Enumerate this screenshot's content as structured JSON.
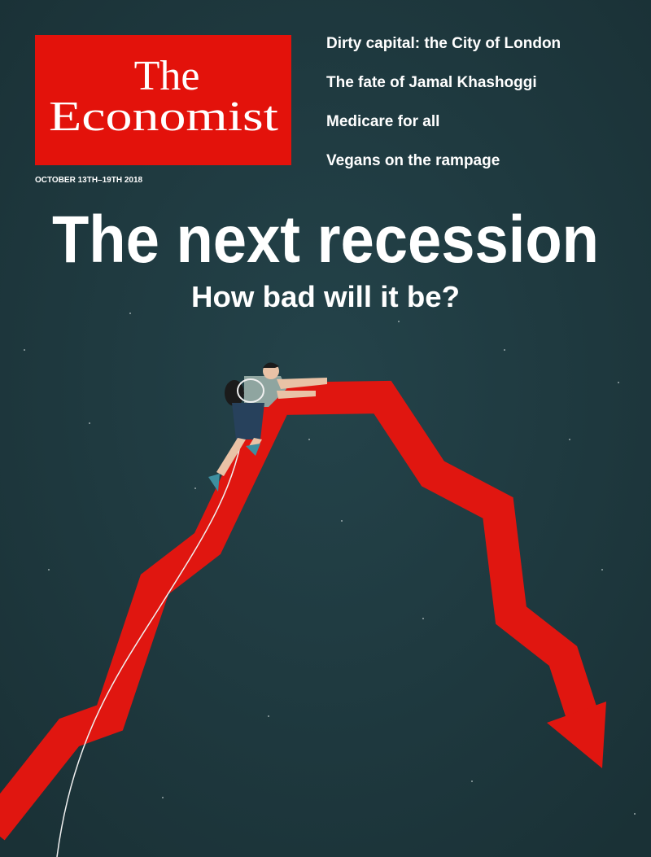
{
  "masthead": {
    "line1": "The",
    "line2": "Economist"
  },
  "date": "OCTOBER 13TH–19TH 2018",
  "cover_lines": [
    "Dirty capital: the City of London",
    "The fate of Jamal Khashoggi",
    "Medicare for all",
    "Vegans on the rampage"
  ],
  "headline": "The next recession",
  "subheadline": "How bad will it be?"
}
